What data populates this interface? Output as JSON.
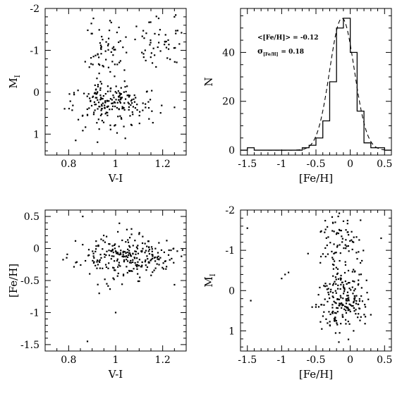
{
  "chart_data": [
    {
      "id": "p1",
      "type": "scatter",
      "xlabel": "V-I",
      "ylabel": "M_I",
      "ylabel_main": "M",
      "ylabel_sub": "I",
      "xlim": [
        0.7,
        1.3
      ],
      "ylim": [
        1.5,
        -2
      ],
      "xticks_labeled": [
        0.8,
        1,
        1.2
      ],
      "xtick_labels": [
        "0.8",
        "1",
        "1.2"
      ],
      "xticks_minor": 0.05,
      "yticks_labeled": [
        -2,
        -1,
        0,
        1
      ],
      "ytick_labels": [
        "-2",
        "-1",
        "0",
        "1"
      ],
      "yticks_minor": 0.2,
      "random_seed": 11,
      "clusters": [
        {
          "n": 150,
          "cx": 0.98,
          "sx": 0.07,
          "cy": 0.2,
          "sy": 0.22
        },
        {
          "n": 60,
          "cx": 0.96,
          "sx": 0.05,
          "cy": -0.9,
          "sy": 0.35
        },
        {
          "n": 55,
          "cx": 1.17,
          "sx": 0.07,
          "cy": -1.15,
          "sy": 0.3
        },
        {
          "n": 50,
          "cx": 1.0,
          "sx": 0.09,
          "cy": 0.55,
          "sy": 0.25
        }
      ],
      "extra_points": [
        {
          "x": 0.83,
          "y": 1.15
        },
        {
          "x": 0.93,
          "y": 0.88
        },
        {
          "x": 0.9,
          "y": -1.4
        },
        {
          "x": 1.25,
          "y": -1.8
        }
      ]
    },
    {
      "id": "p2",
      "type": "histogram",
      "xlabel": "[Fe/H]",
      "ylabel": "N",
      "xlim": [
        -1.6,
        0.6
      ],
      "ylim": [
        -2,
        58
      ],
      "xticks_labeled": [
        -1.5,
        -1,
        -0.5,
        0,
        0.5
      ],
      "xtick_labels": [
        "-1.5",
        "-1",
        "-0.5",
        "0",
        "0.5"
      ],
      "xticks_minor": 0.1,
      "yticks_labeled": [
        0,
        20,
        40
      ],
      "ytick_labels": [
        "0",
        "20",
        "40"
      ],
      "yticks_minor": 5,
      "bin_edges": [
        -1.6,
        -1.5,
        -1.4,
        -1.3,
        -1.2,
        -1.1,
        -1.0,
        -0.9,
        -0.8,
        -0.7,
        -0.6,
        -0.5,
        -0.4,
        -0.3,
        -0.2,
        -0.1,
        0.0,
        0.1,
        0.2,
        0.3,
        0.4,
        0.5,
        0.6
      ],
      "counts": [
        0,
        1,
        0,
        0,
        0,
        0,
        0,
        0,
        0,
        1,
        2,
        5,
        12,
        28,
        50,
        54,
        40,
        16,
        3,
        1,
        1,
        0
      ],
      "gaussian_fit": {
        "mean": -0.12,
        "sigma": 0.18,
        "amplitude": 54
      },
      "annotation_mean": "<[Fe/H]> = -0.12",
      "annotation_sigma_symbol": "σ",
      "annotation_sigma_sub": "[Fe/H]",
      "annotation_sigma_value": "= 0.18"
    },
    {
      "id": "p3",
      "type": "scatter",
      "xlabel": "V-I",
      "ylabel": "[Fe/H]",
      "xlim": [
        0.7,
        1.3
      ],
      "ylim": [
        -1.6,
        0.6
      ],
      "xticks_labeled": [
        0.8,
        1,
        1.2
      ],
      "xtick_labels": [
        "0.8",
        "1",
        "1.2"
      ],
      "xticks_minor": 0.05,
      "yticks_labeled": [
        -1.5,
        -1,
        -0.5,
        0,
        0.5
      ],
      "ytick_labels": [
        "-1.5",
        "-1",
        "-0.5",
        "0",
        "0.5"
      ],
      "yticks_minor": 0.1,
      "random_seed": 23,
      "clusters": [
        {
          "n": 220,
          "cx": 1.02,
          "sx": 0.09,
          "cy": -0.13,
          "sy": 0.17
        },
        {
          "n": 45,
          "cx": 1.18,
          "sx": 0.06,
          "cy": -0.18,
          "sy": 0.14
        }
      ],
      "extra_points": [
        {
          "x": 0.88,
          "y": -1.45
        },
        {
          "x": 1.0,
          "y": -1.0
        },
        {
          "x": 0.86,
          "y": 0.5
        },
        {
          "x": 0.93,
          "y": -0.7
        }
      ]
    },
    {
      "id": "p4",
      "type": "scatter",
      "xlabel": "[Fe/H]",
      "ylabel": "M_I",
      "ylabel_main": "M",
      "ylabel_sub": "I",
      "xlim": [
        -1.6,
        0.6
      ],
      "ylim": [
        1.5,
        -2
      ],
      "xticks_labeled": [
        -1.5,
        -1,
        -0.5,
        0,
        0.5
      ],
      "xtick_labels": [
        "-1.5",
        "-1",
        "-0.5",
        "0",
        "0.5"
      ],
      "xticks_minor": 0.1,
      "yticks_labeled": [
        -2,
        -1,
        0,
        1
      ],
      "ytick_labels": [
        "-2",
        "-1",
        "0",
        "1"
      ],
      "yticks_minor": 0.2,
      "random_seed": 37,
      "clusters": [
        {
          "n": 170,
          "cx": -0.12,
          "sx": 0.16,
          "cy": 0.2,
          "sy": 0.35
        },
        {
          "n": 90,
          "cx": -0.15,
          "sx": 0.15,
          "cy": -1.1,
          "sy": 0.45
        },
        {
          "n": 30,
          "cx": -0.1,
          "sx": 0.2,
          "cy": 0.75,
          "sy": 0.3
        }
      ],
      "extra_points": [
        {
          "x": -1.45,
          "y": 0.25
        },
        {
          "x": -1.5,
          "y": -1.55
        },
        {
          "x": -0.95,
          "y": -0.4
        },
        {
          "x": -1.0,
          "y": -0.3
        },
        {
          "x": 0.45,
          "y": -1.3
        },
        {
          "x": 0.3,
          "y": 0.6
        },
        {
          "x": -0.9,
          "y": -0.45
        }
      ]
    }
  ]
}
